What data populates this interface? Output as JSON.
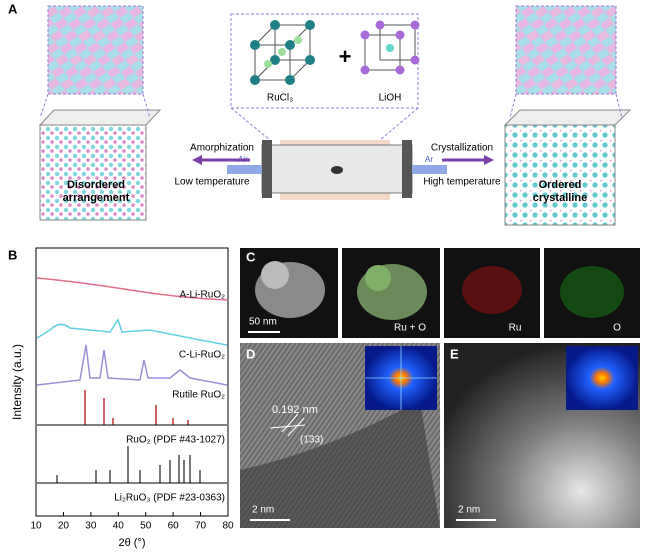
{
  "panel_a": {
    "label": "A",
    "left_caption": [
      "Disordered",
      "arrangement"
    ],
    "right_caption": [
      "Ordered",
      "crystalline"
    ],
    "left_arrow": "Amorphization",
    "left_condition": "Low temperature",
    "left_gas": "Air",
    "right_arrow": "Crystallization",
    "right_condition": "High temperature",
    "right_gas": "Ar",
    "precursor_1": "RuCl₃",
    "plus": "+",
    "precursor_2": "LiOH"
  },
  "panel_b": {
    "label": "B",
    "traces": [
      "A-Li-RuO₂",
      "C-Li-RuO₂",
      "Rutile RuO₂",
      "RuO₂ (PDF #43-1027)",
      "Li₂RuO₃ (PDF #23-0363)"
    ],
    "ylabel": "Intensity (a.u.)",
    "xlabel": "2θ (°)",
    "xlim": [
      10,
      80
    ],
    "xticks": [
      10,
      20,
      30,
      40,
      50,
      60,
      70,
      80
    ]
  },
  "panel_c": {
    "label": "C",
    "scale": "50 nm",
    "maps": [
      "Ru + O",
      "Ru",
      "O"
    ]
  },
  "panel_d": {
    "label": "D",
    "spacing": "0.192 nm",
    "plane": "(1̄33)",
    "scale": "2 nm"
  },
  "panel_e": {
    "label": "E",
    "scale": "2 nm"
  }
}
